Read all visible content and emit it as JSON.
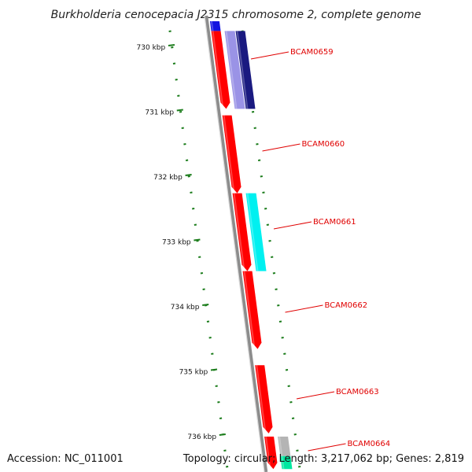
{
  "title": "Burkholderia cenocepacia J2315 chromosome 2, complete genome",
  "footer": {
    "accession": "Accession: NC_011001",
    "summary": "Topology: circular; Length: 3,217,062 bp; Genes: 2,819"
  },
  "colors": {
    "forward_cds": "#ff0000",
    "backbone": "#8c8c8c",
    "blast_navy": "#1a1a80",
    "blast_lavender": "#9a93e6",
    "blast_cyan": "#00f0f0",
    "blast_gray": "#b4b4b4",
    "blast_teal": "#00e8a0",
    "blast_blue": "#1414e0",
    "ticks": "#1c7d1c",
    "label": "#e00000"
  },
  "kbp_labels": [
    "730 kbp",
    "731 kbp",
    "732 kbp",
    "733 kbp",
    "734 kbp",
    "735 kbp",
    "736 kbp"
  ],
  "gene_labels": [
    "BCAM0659",
    "BCAM0660",
    "BCAM0661",
    "BCAM0662",
    "BCAM0663",
    "BCAM0664"
  ],
  "features": [
    {
      "track": "cds",
      "start_kbp": 729.75,
      "end_kbp": 730.95,
      "color": "forward_cds"
    },
    {
      "track": "cds",
      "start_kbp": 731.05,
      "end_kbp": 732.25,
      "color": "forward_cds"
    },
    {
      "track": "cds",
      "start_kbp": 732.25,
      "end_kbp": 733.45,
      "color": "forward_cds"
    },
    {
      "track": "cds",
      "start_kbp": 733.45,
      "end_kbp": 734.65,
      "color": "forward_cds"
    },
    {
      "track": "cds",
      "start_kbp": 734.9,
      "end_kbp": 735.95,
      "color": "forward_cds"
    },
    {
      "track": "cds",
      "start_kbp": 736.0,
      "end_kbp": 736.5,
      "color": "forward_cds"
    },
    {
      "track": "hit",
      "start_kbp": 729.75,
      "end_kbp": 730.95,
      "color": "blast_lavender"
    },
    {
      "track": "hit2",
      "start_kbp": 729.75,
      "end_kbp": 730.95,
      "color": "blast_navy"
    },
    {
      "track": "hit",
      "start_kbp": 732.25,
      "end_kbp": 733.45,
      "color": "blast_cyan"
    },
    {
      "track": "hit",
      "start_kbp": 736.0,
      "end_kbp": 736.3,
      "color": "blast_gray"
    },
    {
      "track": "hit",
      "start_kbp": 736.3,
      "end_kbp": 736.5,
      "color": "blast_teal"
    },
    {
      "track": "cds",
      "start_kbp": 729.6,
      "end_kbp": 729.75,
      "color": "blast_blue"
    }
  ]
}
